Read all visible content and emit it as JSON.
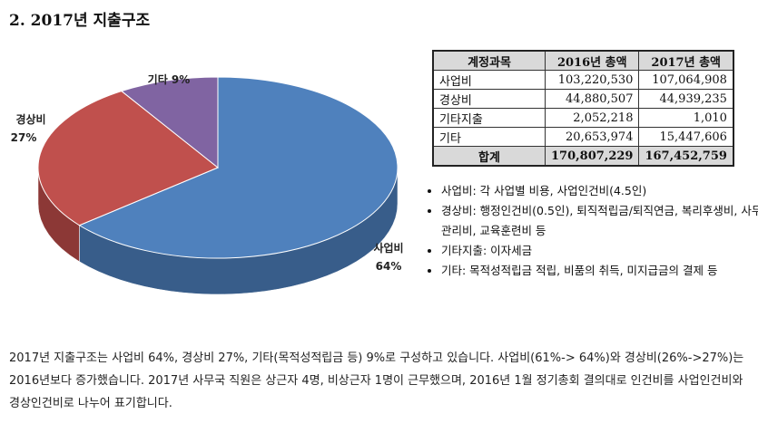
{
  "heading": "2. 2017년 지출구조",
  "chart_data": {
    "type": "pie",
    "title": "",
    "slices": [
      {
        "label": "사업비",
        "value": 64,
        "pct_label": "64%",
        "color": "#4f81bd",
        "side": "#385d8a"
      },
      {
        "label": "경상비",
        "value": 27,
        "pct_label": "27%",
        "color": "#c0504d",
        "side": "#8c3836"
      },
      {
        "label": "기타",
        "value": 9,
        "pct_label": "9%",
        "color": "#8064a2",
        "side": "#5c4876"
      }
    ]
  },
  "table": {
    "headers": [
      "계정과목",
      "2016년 총액",
      "2017년 총액"
    ],
    "rows": [
      {
        "name": "사업비",
        "y2016": "103,220,530",
        "y2017": "107,064,908"
      },
      {
        "name": "경상비",
        "y2016": "44,880,507",
        "y2017": "44,939,235"
      },
      {
        "name": "기타지출",
        "y2016": "2,052,218",
        "y2017": "1,010"
      },
      {
        "name": "기타",
        "y2016": "20,653,974",
        "y2017": "15,447,606"
      }
    ],
    "total": {
      "name": "합계",
      "y2016": "170,807,229",
      "y2017": "167,452,759"
    }
  },
  "notes": [
    "사업비: 각 사업별 비용, 사업인건비(4.5인)",
    "경상비: 행정인건비(0.5인), 퇴직적립금/퇴직연금, 복리후생비, 사무관리비, 교육훈련비 등",
    "기타지출: 이자세금",
    "기타: 목적성적립금 적립, 비품의 취득, 미지급금의 결제 등"
  ],
  "paragraph": "2017년 지출구조는 사업비 64%, 경상비 27%, 기타(목적성적립금 등) 9%로 구성하고 있습니다. 사업비(61%-> 64%)와 경상비(26%->27%)는 2016년보다 증가했습니다. 2017년 사무국 직원은 상근자 4명, 비상근자 1명이 근무했으며, 2016년 1월 정기총회 결의대로 인건비를 사업인건비와 경상인건비로 나누어 표기합니다."
}
